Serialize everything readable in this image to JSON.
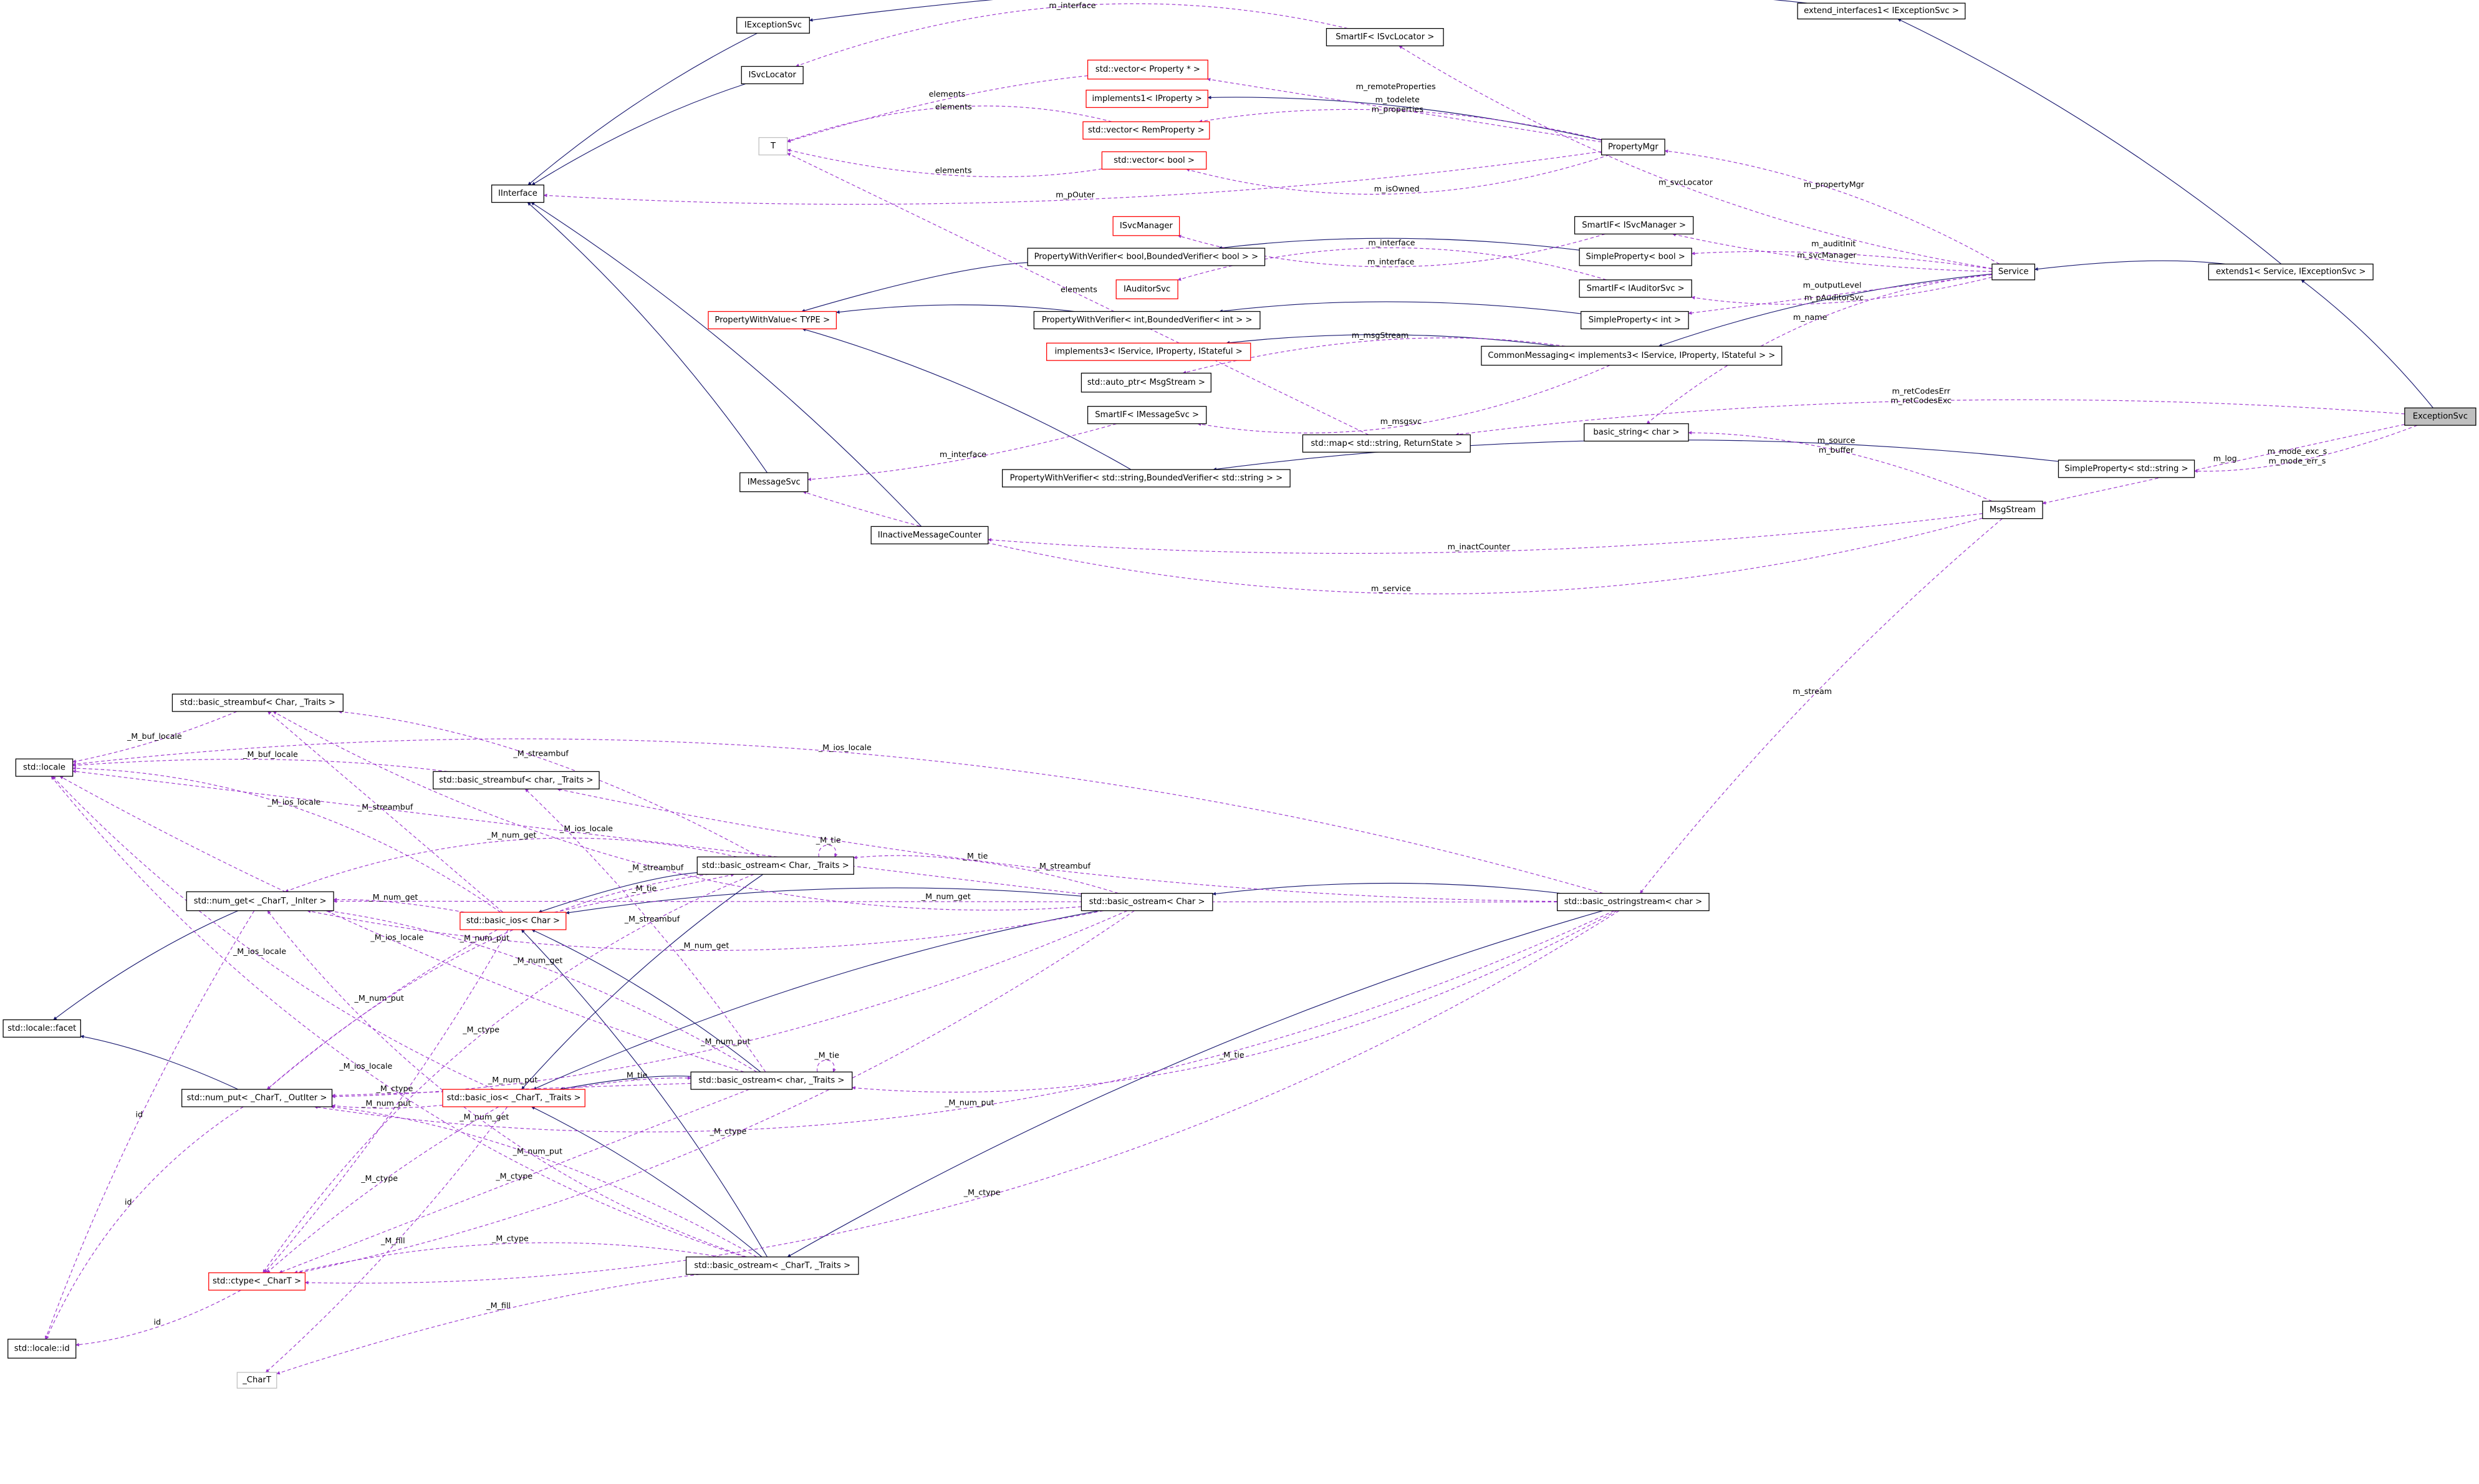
{
  "colors": {
    "inheritance": "#191970",
    "usage": "#9a32cd",
    "undocumented_border": "#ff0000",
    "focus_fill": "#bfbfbf"
  },
  "nodes": [
    {
      "id": "IExceptionSvc",
      "label": "IExceptionSvc",
      "style": "normal"
    },
    {
      "id": "ISvcLocator",
      "label": "ISvcLocator",
      "style": "normal"
    },
    {
      "id": "T",
      "label": "T",
      "style": "gray"
    },
    {
      "id": "IInterface",
      "label": "IInterface",
      "style": "normal"
    },
    {
      "id": "SmartIF_ISvcLocator",
      "label": "SmartIF< ISvcLocator >",
      "style": "normal"
    },
    {
      "id": "vec_Property",
      "label": "std::vector< Property * >",
      "style": "red"
    },
    {
      "id": "implements1",
      "label": "implements1< IProperty >",
      "style": "red"
    },
    {
      "id": "vec_RemProperty",
      "label": "std::vector< RemProperty >",
      "style": "red"
    },
    {
      "id": "vec_bool",
      "label": "std::vector< bool >",
      "style": "red"
    },
    {
      "id": "PropertyMgr",
      "label": "PropertyMgr",
      "style": "normal"
    },
    {
      "id": "ISvcManager",
      "label": "ISvcManager",
      "style": "red"
    },
    {
      "id": "SmartIF_ISvcManager",
      "label": "SmartIF< ISvcManager >",
      "style": "normal"
    },
    {
      "id": "PWV_bool",
      "label": "PropertyWithVerifier< bool,BoundedVerifier< bool > >",
      "style": "normal"
    },
    {
      "id": "SP_bool",
      "label": "SimpleProperty< bool >",
      "style": "normal"
    },
    {
      "id": "IAuditorSvc",
      "label": "IAuditorSvc",
      "style": "red"
    },
    {
      "id": "SmartIF_IAuditorSvc",
      "label": "SmartIF< IAuditorSvc >",
      "style": "normal"
    },
    {
      "id": "PropertyWithValue",
      "label": "PropertyWithValue< TYPE >",
      "style": "red"
    },
    {
      "id": "PWV_int",
      "label": "PropertyWithVerifier< int,BoundedVerifier< int > >",
      "style": "normal"
    },
    {
      "id": "SP_int",
      "label": "SimpleProperty< int >",
      "style": "normal"
    },
    {
      "id": "implements3",
      "label": "implements3< IService, IProperty, IStateful >",
      "style": "red"
    },
    {
      "id": "CommonMessaging",
      "label": "CommonMessaging< implements3< IService, IProperty, IStateful > >",
      "style": "normal"
    },
    {
      "id": "auto_ptr",
      "label": "std::auto_ptr< MsgStream >",
      "style": "normal"
    },
    {
      "id": "SmartIF_IMessageSvc",
      "label": "SmartIF< IMessageSvc >",
      "style": "normal"
    },
    {
      "id": "map_ReturnState",
      "label": "std::map< std::string, ReturnState >",
      "style": "normal"
    },
    {
      "id": "basic_string",
      "label": "basic_string< char >",
      "style": "normal"
    },
    {
      "id": "IMessageSvc",
      "label": "IMessageSvc",
      "style": "normal"
    },
    {
      "id": "PWV_string",
      "label": "PropertyWithVerifier< std::string,BoundedVerifier< std::string > >",
      "style": "normal"
    },
    {
      "id": "SP_string",
      "label": "SimpleProperty< std::string >",
      "style": "normal"
    },
    {
      "id": "IInactiveMessageCounter",
      "label": "IInactiveMessageCounter",
      "style": "normal"
    },
    {
      "id": "MsgStream",
      "label": "MsgStream",
      "style": "normal"
    },
    {
      "id": "Service",
      "label": "Service",
      "style": "normal"
    },
    {
      "id": "extends1",
      "label": "extends1< Service, IExceptionSvc >",
      "style": "normal"
    },
    {
      "id": "extend_interfaces1",
      "label": "extend_interfaces1< IExceptionSvc >",
      "style": "normal"
    },
    {
      "id": "ExceptionSvc",
      "label": "ExceptionSvc",
      "style": "focus"
    },
    {
      "id": "locale",
      "label": "std::locale",
      "style": "normal"
    },
    {
      "id": "streambuf_Char",
      "label": "std::basic_streambuf< Char, _Traits >",
      "style": "normal"
    },
    {
      "id": "streambuf_char",
      "label": "std::basic_streambuf< char, _Traits >",
      "style": "normal"
    },
    {
      "id": "ostream_Char_Traits",
      "label": "std::basic_ostream< Char, _Traits >",
      "style": "normal"
    },
    {
      "id": "num_get",
      "label": "std::num_get< _CharT, _InIter >",
      "style": "normal"
    },
    {
      "id": "basic_ios_Char",
      "label": "std::basic_ios< Char >",
      "style": "red"
    },
    {
      "id": "ostream_Char",
      "label": "std::basic_ostream< Char >",
      "style": "normal"
    },
    {
      "id": "ostringstream",
      "label": "std::basic_ostringstream< char >",
      "style": "normal"
    },
    {
      "id": "facet",
      "label": "std::locale::facet",
      "style": "normal"
    },
    {
      "id": "num_put",
      "label": "std::num_put< _CharT, _OutIter >",
      "style": "normal"
    },
    {
      "id": "basic_ios_CharT",
      "label": "std::basic_ios< _CharT, _Traits >",
      "style": "red"
    },
    {
      "id": "ostream_char_Traits",
      "label": "std::basic_ostream< char, _Traits >",
      "style": "normal"
    },
    {
      "id": "ostream_CharT_Traits",
      "label": "std::basic_ostream< _CharT, _Traits >",
      "style": "normal"
    },
    {
      "id": "ctype",
      "label": "std::ctype< _CharT >",
      "style": "red"
    },
    {
      "id": "locale_id",
      "label": "std::locale::id",
      "style": "normal"
    },
    {
      "id": "CharT",
      "label": "_CharT",
      "style": "gray"
    }
  ],
  "edges": [
    {
      "from": "IExceptionSvc",
      "to": "IInterface",
      "kind": "inherit",
      "label": []
    },
    {
      "from": "ISvcLocator",
      "to": "IInterface",
      "kind": "inherit",
      "label": []
    },
    {
      "from": "IMessageSvc",
      "to": "IInterface",
      "kind": "inherit",
      "label": []
    },
    {
      "from": "IInactiveMessageCounter",
      "to": "IInterface",
      "kind": "inherit",
      "label": []
    },
    {
      "from": "extend_interfaces1",
      "to": "IExceptionSvc",
      "kind": "inherit",
      "label": []
    },
    {
      "from": "PropertyMgr",
      "to": "implements1",
      "kind": "inherit",
      "label": []
    },
    {
      "from": "PWV_bool",
      "to": "PropertyWithValue",
      "kind": "inherit",
      "label": []
    },
    {
      "from": "SP_bool",
      "to": "PWV_bool",
      "kind": "inherit",
      "label": []
    },
    {
      "from": "PWV_int",
      "to": "PropertyWithValue",
      "kind": "inherit",
      "label": []
    },
    {
      "from": "SP_int",
      "to": "PWV_int",
      "kind": "inherit",
      "label": []
    },
    {
      "from": "PWV_string",
      "to": "PropertyWithValue",
      "kind": "inherit",
      "label": []
    },
    {
      "from": "SP_string",
      "to": "PWV_string",
      "kind": "inherit",
      "label": []
    },
    {
      "from": "CommonMessaging",
      "to": "implements3",
      "kind": "inherit",
      "label": []
    },
    {
      "from": "Service",
      "to": "CommonMessaging",
      "kind": "inherit",
      "label": []
    },
    {
      "from": "extends1",
      "to": "Service",
      "kind": "inherit",
      "label": []
    },
    {
      "from": "extends1",
      "to": "extend_interfaces1",
      "kind": "inherit",
      "label": []
    },
    {
      "from": "ExceptionSvc",
      "to": "extends1",
      "kind": "inherit",
      "label": []
    },
    {
      "from": "SmartIF_ISvcLocator",
      "to": "ISvcLocator",
      "kind": "use",
      "label": [
        "m_interface"
      ]
    },
    {
      "from": "Service",
      "to": "SmartIF_ISvcLocator",
      "kind": "use",
      "label": [
        "m_svcLocator"
      ]
    },
    {
      "from": "PropertyMgr",
      "to": "vec_Property",
      "kind": "use",
      "label": [
        "m_todelete",
        "m_properties"
      ]
    },
    {
      "from": "PropertyMgr",
      "to": "vec_RemProperty",
      "kind": "use",
      "label": [
        "m_remoteProperties"
      ]
    },
    {
      "from": "PropertyMgr",
      "to": "vec_bool",
      "kind": "use",
      "label": [
        "m_isOwned"
      ]
    },
    {
      "from": "PropertyMgr",
      "to": "IInterface",
      "kind": "use",
      "label": [
        "m_pOuter"
      ]
    },
    {
      "from": "vec_Property",
      "to": "T",
      "kind": "use",
      "label": [
        "elements"
      ]
    },
    {
      "from": "vec_RemProperty",
      "to": "T",
      "kind": "use",
      "label": [
        "elements"
      ]
    },
    {
      "from": "vec_bool",
      "to": "T",
      "kind": "use",
      "label": [
        "elements"
      ]
    },
    {
      "from": "map_ReturnState",
      "to": "T",
      "kind": "use",
      "label": [
        "elements"
      ]
    },
    {
      "from": "Service",
      "to": "PropertyMgr",
      "kind": "use",
      "label": [
        "m_propertyMgr"
      ]
    },
    {
      "from": "SmartIF_ISvcManager",
      "to": "ISvcManager",
      "kind": "use",
      "label": [
        "m_interface"
      ]
    },
    {
      "from": "Service",
      "to": "SmartIF_ISvcManager",
      "kind": "use",
      "label": [
        "m_svcManager"
      ]
    },
    {
      "from": "Service",
      "to": "SP_bool",
      "kind": "use",
      "label": [
        "m_auditInit"
      ]
    },
    {
      "from": "SmartIF_IAuditorSvc",
      "to": "IAuditorSvc",
      "kind": "use",
      "label": [
        "m_interface"
      ]
    },
    {
      "from": "Service",
      "to": "SmartIF_IAuditorSvc",
      "kind": "use",
      "label": [
        "m_pAuditorSvc"
      ]
    },
    {
      "from": "Service",
      "to": "SP_int",
      "kind": "use",
      "label": [
        "m_outputLevel"
      ]
    },
    {
      "from": "CommonMessaging",
      "to": "auto_ptr",
      "kind": "use",
      "label": [
        "m_msgStream"
      ]
    },
    {
      "from": "CommonMessaging",
      "to": "SmartIF_IMessageSvc",
      "kind": "use",
      "label": [
        "m_msgsvc"
      ]
    },
    {
      "from": "SmartIF_IMessageSvc",
      "to": "IMessageSvc",
      "kind": "use",
      "label": [
        "m_interface"
      ]
    },
    {
      "from": "ExceptionSvc",
      "to": "map_ReturnState",
      "kind": "use",
      "label": [
        "m_retCodesErr",
        "m_retCodesExc"
      ]
    },
    {
      "from": "Service",
      "to": "basic_string",
      "kind": "use",
      "label": [
        "m_name"
      ]
    },
    {
      "from": "ExceptionSvc",
      "to": "SP_string",
      "kind": "use",
      "label": [
        "m_mode_exc_s",
        "m_mode_err_s"
      ]
    },
    {
      "from": "ExceptionSvc",
      "to": "MsgStream",
      "kind": "use",
      "label": [
        "m_log"
      ]
    },
    {
      "from": "MsgStream",
      "to": "basic_string",
      "kind": "use",
      "label": [
        "m_source",
        "m_buffer"
      ]
    },
    {
      "from": "MsgStream",
      "to": "IMessageSvc",
      "kind": "use",
      "label": [
        "m_service"
      ]
    },
    {
      "from": "MsgStream",
      "to": "IInactiveMessageCounter",
      "kind": "use",
      "label": [
        "m_inactCounter"
      ]
    },
    {
      "from": "MsgStream",
      "to": "ostringstream",
      "kind": "use",
      "label": [
        "m_stream"
      ]
    },
    {
      "from": "num_get",
      "to": "facet",
      "kind": "inherit",
      "label": []
    },
    {
      "from": "num_put",
      "to": "facet",
      "kind": "inherit",
      "label": []
    },
    {
      "from": "ostream_Char_Traits",
      "to": "basic_ios_Char",
      "kind": "inherit",
      "label": []
    },
    {
      "from": "ostream_Char_Traits",
      "to": "basic_ios_CharT",
      "kind": "inherit",
      "label": []
    },
    {
      "from": "ostream_Char",
      "to": "basic_ios_Char",
      "kind": "inherit",
      "label": []
    },
    {
      "from": "ostream_Char",
      "to": "basic_ios_CharT",
      "kind": "inherit",
      "label": []
    },
    {
      "from": "ostream_char_Traits",
      "to": "basic_ios_CharT",
      "kind": "inherit",
      "label": []
    },
    {
      "from": "ostream_char_Traits",
      "to": "basic_ios_Char",
      "kind": "inherit",
      "label": []
    },
    {
      "from": "ostream_CharT_Traits",
      "to": "basic_ios_Char",
      "kind": "inherit",
      "label": []
    },
    {
      "from": "ostream_CharT_Traits",
      "to": "basic_ios_CharT",
      "kind": "inherit",
      "label": []
    },
    {
      "from": "ostringstream",
      "to": "ostream_Char",
      "kind": "inherit",
      "label": []
    },
    {
      "from": "ostringstream",
      "to": "ostream_CharT_Traits",
      "kind": "inherit",
      "label": []
    },
    {
      "from": "streambuf_Char",
      "to": "locale",
      "kind": "use",
      "label": [
        "_M_buf_locale"
      ]
    },
    {
      "from": "streambuf_char",
      "to": "locale",
      "kind": "use",
      "label": [
        "_M_buf_locale"
      ]
    },
    {
      "from": "basic_ios_Char",
      "to": "locale",
      "kind": "use",
      "label": [
        "_M_ios_locale"
      ]
    },
    {
      "from": "basic_ios_CharT",
      "to": "locale",
      "kind": "use",
      "label": [
        "_M_ios_locale"
      ]
    },
    {
      "from": "ostream_Char",
      "to": "locale",
      "kind": "use",
      "label": [
        "_M_ios_locale"
      ]
    },
    {
      "from": "ostringstream",
      "to": "locale",
      "kind": "use",
      "label": [
        "_M_ios_locale"
      ]
    },
    {
      "from": "ostream_CharT_Traits",
      "to": "locale",
      "kind": "use",
      "label": [
        "_M_ios_locale"
      ]
    },
    {
      "from": "ostream_char_Traits",
      "to": "locale",
      "kind": "use",
      "label": [
        "_M_ios_locale"
      ]
    },
    {
      "from": "num_get",
      "to": "locale_id",
      "kind": "use",
      "label": [
        "id"
      ]
    },
    {
      "from": "num_put",
      "to": "locale_id",
      "kind": "use",
      "label": [
        "id"
      ]
    },
    {
      "from": "ctype",
      "to": "locale_id",
      "kind": "use",
      "label": [
        "id"
      ]
    },
    {
      "from": "basic_ios_Char",
      "to": "streambuf_Char",
      "kind": "use",
      "label": [
        "_M_streambuf"
      ]
    },
    {
      "from": "ostream_Char_Traits",
      "to": "streambuf_Char",
      "kind": "use",
      "label": [
        "_M_streambuf"
      ]
    },
    {
      "from": "ostream_Char",
      "to": "streambuf_Char",
      "kind": "use",
      "label": [
        "_M_streambuf"
      ]
    },
    {
      "from": "ostringstream",
      "to": "streambuf_char",
      "kind": "use",
      "label": [
        "_M_streambuf"
      ]
    },
    {
      "from": "ostream_char_Traits",
      "to": "streambuf_char",
      "kind": "use",
      "label": [
        "_M_streambuf"
      ]
    },
    {
      "from": "ostream_Char_Traits",
      "to": "ostream_Char_Traits",
      "kind": "use",
      "label": [
        "_M_tie"
      ]
    },
    {
      "from": "ostream_char_Traits",
      "to": "ostream_char_Traits",
      "kind": "use",
      "label": [
        "_M_tie"
      ]
    },
    {
      "from": "basic_ios_Char",
      "to": "ostream_Char_Traits",
      "kind": "use",
      "label": [
        "_M_tie"
      ]
    },
    {
      "from": "ostream_Char",
      "to": "ostream_Char_Traits",
      "kind": "use",
      "label": [
        "_M_tie"
      ]
    },
    {
      "from": "ostringstream",
      "to": "ostream_char_Traits",
      "kind": "use",
      "label": [
        "_M_tie"
      ]
    },
    {
      "from": "basic_ios_CharT",
      "to": "ostream_char_Traits",
      "kind": "use",
      "label": [
        "_M_tie"
      ]
    },
    {
      "from": "basic_ios_Char",
      "to": "num_get",
      "kind": "use",
      "label": [
        "_M_num_get"
      ]
    },
    {
      "from": "ostream_Char_Traits",
      "to": "num_get",
      "kind": "use",
      "label": [
        "_M_num_get"
      ]
    },
    {
      "from": "ostream_Char",
      "to": "num_get",
      "kind": "use",
      "label": [
        "_M_num_get"
      ]
    },
    {
      "from": "ostringstream",
      "to": "num_get",
      "kind": "use",
      "label": [
        "_M_num_get"
      ]
    },
    {
      "from": "ostream_char_Traits",
      "to": "num_get",
      "kind": "use",
      "label": [
        "_M_num_get"
      ]
    },
    {
      "from": "ostream_CharT_Traits",
      "to": "num_get",
      "kind": "use",
      "label": [
        "_M_num_get"
      ]
    },
    {
      "from": "basic_ios_CharT",
      "to": "num_put",
      "kind": "use",
      "label": [
        "_M_num_put"
      ]
    },
    {
      "from": "basic_ios_Char",
      "to": "num_put",
      "kind": "use",
      "label": [
        "_M_num_put"
      ]
    },
    {
      "from": "ostream_Char_Traits",
      "to": "num_put",
      "kind": "use",
      "label": [
        "_M_num_put"
      ]
    },
    {
      "from": "ostream_Char",
      "to": "num_put",
      "kind": "use",
      "label": [
        "_M_num_put"
      ]
    },
    {
      "from": "ostream_char_Traits",
      "to": "num_put",
      "kind": "use",
      "label": [
        "_M_num_put"
      ]
    },
    {
      "from": "ostream_CharT_Traits",
      "to": "num_put",
      "kind": "use",
      "label": [
        "_M_num_put"
      ]
    },
    {
      "from": "ostringstream",
      "to": "num_put",
      "kind": "use",
      "label": [
        "_M_num_put"
      ]
    },
    {
      "from": "basic_ios_Char",
      "to": "ctype",
      "kind": "use",
      "label": [
        "_M_ctype"
      ]
    },
    {
      "from": "basic_ios_CharT",
      "to": "ctype",
      "kind": "use",
      "label": [
        "_M_ctype"
      ]
    },
    {
      "from": "ostream_Char_Traits",
      "to": "ctype",
      "kind": "use",
      "label": [
        "_M_ctype"
      ]
    },
    {
      "from": "ostream_Char",
      "to": "ctype",
      "kind": "use",
      "label": [
        "_M_ctype"
      ]
    },
    {
      "from": "ostream_char_Traits",
      "to": "ctype",
      "kind": "use",
      "label": [
        "_M_ctype"
      ]
    },
    {
      "from": "ostream_CharT_Traits",
      "to": "ctype",
      "kind": "use",
      "label": [
        "_M_ctype"
      ]
    },
    {
      "from": "ostringstream",
      "to": "ctype",
      "kind": "use",
      "label": [
        "_M_ctype"
      ]
    },
    {
      "from": "basic_ios_CharT",
      "to": "CharT",
      "kind": "use",
      "label": [
        "_M_fill"
      ]
    },
    {
      "from": "ostream_CharT_Traits",
      "to": "CharT",
      "kind": "use",
      "label": [
        "_M_fill"
      ]
    }
  ]
}
